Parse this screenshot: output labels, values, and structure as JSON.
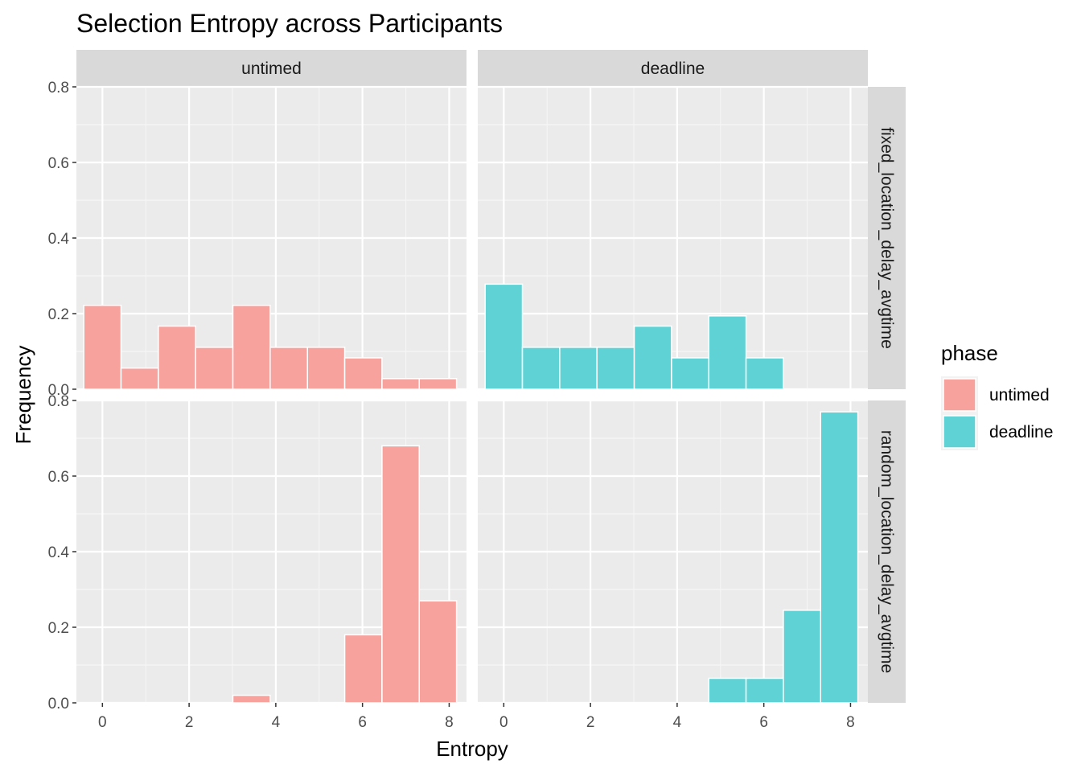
{
  "chart_data": {
    "type": "bar",
    "title": "Selection Entropy across Participants",
    "xlabel": "Entropy",
    "ylabel": "Frequency",
    "xlim": [
      -0.6,
      8.4
    ],
    "ylim": [
      0,
      0.8
    ],
    "x_ticks": [
      0,
      2,
      4,
      6,
      8
    ],
    "y_ticks": [
      0.0,
      0.2,
      0.4,
      0.6,
      0.8
    ],
    "y_tick_labels": [
      "0.0",
      "0.2",
      "0.4",
      "0.6",
      "0.8"
    ],
    "bin_width": 0.86,
    "columns": [
      "untimed",
      "deadline"
    ],
    "rows": [
      "fixed_location_delay_avgtime",
      "random_location_delay_avgtime"
    ],
    "legend": {
      "title": "phase",
      "position": "right",
      "entries": [
        {
          "label": "untimed",
          "color": "#F8A29E"
        },
        {
          "label": "deadline",
          "color": "#5FD2D5"
        }
      ]
    },
    "grid": true,
    "panels": [
      {
        "column": "untimed",
        "row": "fixed_location_delay_avgtime",
        "phase": "untimed",
        "color": "#F8A29E",
        "bin_centers": [
          0.0,
          0.86,
          1.72,
          2.58,
          3.44,
          4.3,
          5.16,
          6.02,
          6.88,
          7.74
        ],
        "values": [
          0.222,
          0.056,
          0.167,
          0.111,
          0.222,
          0.111,
          0.111,
          0.083,
          0.028,
          0.028
        ]
      },
      {
        "column": "deadline",
        "row": "fixed_location_delay_avgtime",
        "phase": "deadline",
        "color": "#5FD2D5",
        "bin_centers": [
          0.0,
          0.86,
          1.72,
          2.58,
          3.44,
          4.3,
          5.16,
          6.02
        ],
        "values": [
          0.278,
          0.111,
          0.111,
          0.111,
          0.167,
          0.083,
          0.194,
          0.083
        ]
      },
      {
        "column": "untimed",
        "row": "random_location_delay_avgtime",
        "phase": "untimed",
        "color": "#F8A29E",
        "bin_centers": [
          3.44,
          6.02,
          6.88,
          7.74
        ],
        "values": [
          0.02,
          0.18,
          0.68,
          0.27
        ]
      },
      {
        "column": "deadline",
        "row": "random_location_delay_avgtime",
        "phase": "deadline",
        "color": "#5FD2D5",
        "bin_centers": [
          5.16,
          6.02,
          6.88,
          7.74
        ],
        "values": [
          0.065,
          0.065,
          0.245,
          0.77
        ]
      }
    ]
  }
}
